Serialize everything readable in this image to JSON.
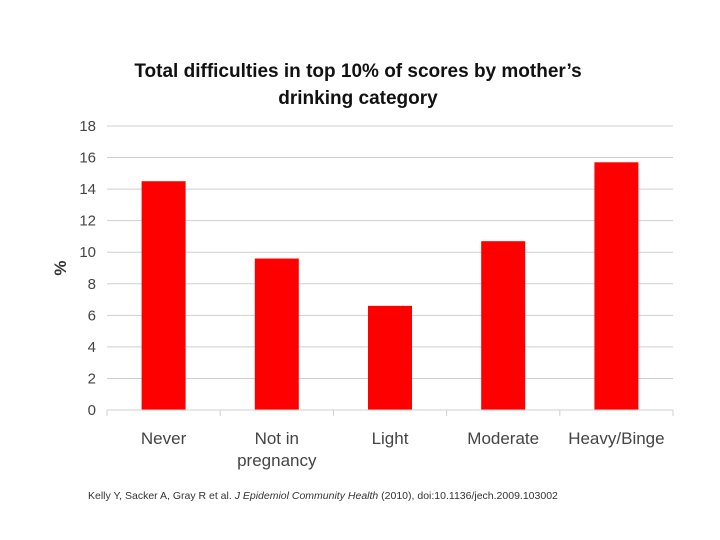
{
  "chart_data": {
    "type": "bar",
    "title_lines": [
      "Total difficulties in top 10% of scores by mother’s",
      "drinking category"
    ],
    "ylabel": "%",
    "xlabel": "",
    "ylim": [
      0,
      18
    ],
    "yticks": [
      0,
      2,
      4,
      6,
      8,
      10,
      12,
      14,
      16,
      18
    ],
    "grid": true,
    "categories": [
      "Never",
      "Not in pregnancy",
      "Light",
      "Moderate",
      "Heavy/Binge"
    ],
    "category_lines": [
      [
        "Never"
      ],
      [
        "Not in",
        "pregnancy"
      ],
      [
        "Light"
      ],
      [
        "Moderate"
      ],
      [
        "Heavy/Binge"
      ]
    ],
    "values": [
      14.5,
      9.6,
      6.6,
      10.7,
      15.7
    ],
    "color": "#ff0000"
  },
  "citation": {
    "authors": "Kelly Y, Sacker A, Gray R et al.",
    "journal": "J Epidemiol Community Health",
    "details": "(2010), doi:10.1136/jech.2009.103002"
  }
}
